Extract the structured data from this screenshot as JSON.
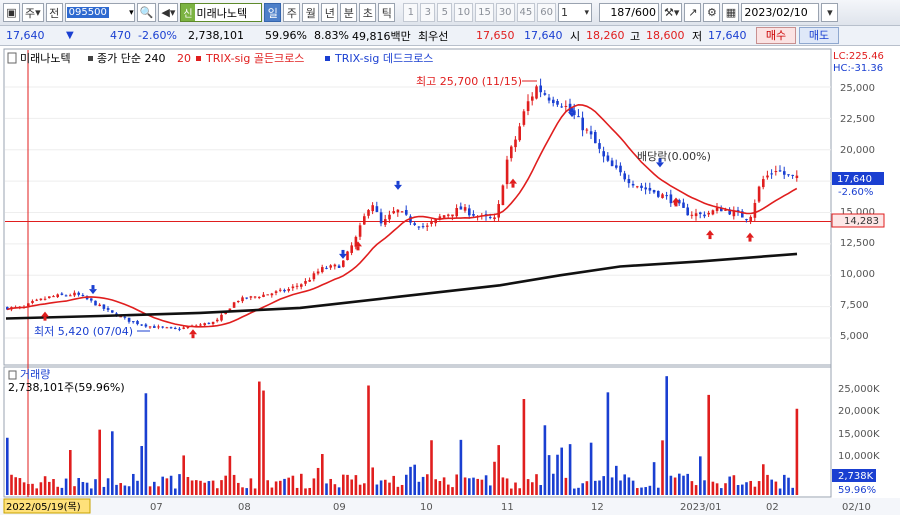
{
  "toolbar": {
    "type_label": "주",
    "prev_label": "전",
    "code": "095500",
    "sin": "신",
    "name": "미래나노텍",
    "periods": [
      "일",
      "주",
      "월",
      "년",
      "분",
      "초",
      "틱"
    ],
    "numbers": [
      "1",
      "3",
      "5",
      "10",
      "15",
      "30",
      "45",
      "60"
    ],
    "count_value": "1",
    "page": "187/600",
    "date": "2023/02/10"
  },
  "quote": {
    "price": "17,640",
    "change": "470",
    "change_pct": "-2.60%",
    "volume": "2,738,101",
    "vol_ratio": "59.96%",
    "turnover": "8.83%",
    "amount": "49,816백만",
    "best_bid_label": "최우선",
    "best_ask": "17,650",
    "best_bid": "17,640",
    "open_label": "시",
    "open": "18,260",
    "high_label": "고",
    "high": "18,600",
    "low_label": "저",
    "low": "17,640",
    "buy": "매수",
    "sell": "매도"
  },
  "legend": {
    "name": "미래나노텍",
    "ma": "종가 단순 240",
    "ma2": "20",
    "golden": "TRIX-sig 골든크로스",
    "dead": "TRIX-sig 데드크로스"
  },
  "price_axis": {
    "lc": "LC:225.46",
    "hc": "HC:-31.36",
    "ticks": [
      "25,000",
      "22,500",
      "20,000",
      "17,500",
      "15,000",
      "12,500",
      "10,000",
      "7,500",
      "5,000"
    ],
    "current": "17,640",
    "current_pct": "-2.60%",
    "line_value": "14,283"
  },
  "annotations": {
    "high": "최고 25,700 (11/15)",
    "low": "최저 5,420 (07/04)",
    "dividend": "배당락(0.00%)"
  },
  "volume": {
    "title": "거래량",
    "value": "2,738,101주(59.96%)",
    "ticks": [
      "25,000K",
      "20,000K",
      "15,000K",
      "10,000K",
      "5,000K"
    ],
    "current": "2,738K",
    "current_pct": "59.96%"
  },
  "xaxis": {
    "start": "2022/05/19(목)",
    "labels": [
      "07",
      "08",
      "09",
      "10",
      "11",
      "12",
      "2023/01",
      "02",
      "02/10"
    ]
  },
  "colors": {
    "up": "#e01e1e",
    "down": "#1a3fd1",
    "ma": "#e01e1e",
    "long_ma": "#111111"
  },
  "chart_data": {
    "type": "candlestick",
    "period": "daily",
    "x_range": [
      "2022/05/19",
      "2023/02/10"
    ],
    "price_ylim": [
      5000,
      25000
    ],
    "series": [
      {
        "name": "종가 단순 240"
      },
      {
        "name": "20"
      }
    ],
    "close_approx": [
      [
        "2022-05",
        7400
      ],
      [
        "2022-06",
        8300
      ],
      [
        "2022-07",
        5900
      ],
      [
        "2022-08",
        8600
      ],
      [
        "2022-09",
        14500
      ],
      [
        "2022-10",
        15000
      ],
      [
        "2022-11",
        24000
      ],
      [
        "2022-12",
        17500
      ],
      [
        "2023-01",
        14800
      ],
      [
        "2023-02",
        17640
      ]
    ],
    "high_point": {
      "value": 25700,
      "date": "11/15"
    },
    "low_point": {
      "value": 5420,
      "date": "07/04"
    },
    "horizontal_line": 14283
  }
}
